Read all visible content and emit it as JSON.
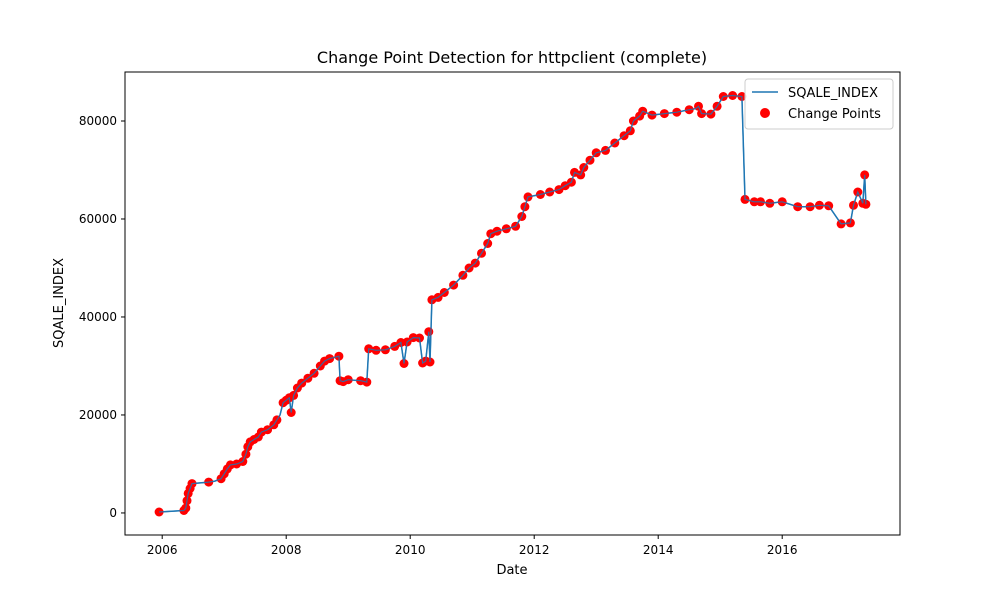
{
  "chart_data": {
    "type": "line",
    "title": "Change Point Detection for httpclient (complete)",
    "xlabel": "Date",
    "ylabel": "SQALE_INDEX",
    "xlim": [
      2005.4,
      2017.9
    ],
    "ylim": [
      -4500,
      90000
    ],
    "xticks": [
      2006,
      2008,
      2010,
      2012,
      2014,
      2016
    ],
    "yticks": [
      0,
      20000,
      40000,
      60000,
      80000
    ],
    "grid": false,
    "legend": "top-right",
    "series": [
      {
        "name": "SQALE_INDEX",
        "kind": "line",
        "color": "#1f77b4",
        "points": [
          [
            2005.95,
            200
          ],
          [
            2006.35,
            500
          ],
          [
            2006.38,
            1000
          ],
          [
            2006.4,
            2500
          ],
          [
            2006.42,
            4000
          ],
          [
            2006.45,
            5000
          ],
          [
            2006.48,
            6000
          ],
          [
            2006.75,
            6300
          ],
          [
            2006.85,
            6500
          ],
          [
            2006.95,
            7000
          ],
          [
            2007.0,
            8000
          ],
          [
            2007.05,
            9000
          ],
          [
            2007.1,
            9800
          ],
          [
            2007.2,
            10000
          ],
          [
            2007.3,
            10500
          ],
          [
            2007.35,
            12000
          ],
          [
            2007.38,
            13500
          ],
          [
            2007.42,
            14500
          ],
          [
            2007.48,
            15000
          ],
          [
            2007.55,
            15500
          ],
          [
            2007.6,
            16500
          ],
          [
            2007.7,
            17000
          ],
          [
            2007.8,
            18000
          ],
          [
            2007.85,
            19000
          ],
          [
            2007.9,
            20000
          ],
          [
            2007.95,
            22500
          ],
          [
            2008.0,
            23000
          ],
          [
            2008.05,
            23500
          ],
          [
            2008.08,
            20500
          ],
          [
            2008.12,
            24000
          ],
          [
            2008.18,
            25500
          ],
          [
            2008.25,
            26500
          ],
          [
            2008.35,
            27500
          ],
          [
            2008.45,
            28500
          ],
          [
            2008.55,
            30000
          ],
          [
            2008.62,
            31000
          ],
          [
            2008.7,
            31500
          ],
          [
            2008.8,
            31800
          ],
          [
            2008.85,
            32000
          ],
          [
            2008.87,
            27000
          ],
          [
            2008.92,
            26800
          ],
          [
            2009.0,
            27200
          ],
          [
            2009.2,
            27000
          ],
          [
            2009.3,
            26700
          ],
          [
            2009.33,
            33500
          ],
          [
            2009.45,
            33200
          ],
          [
            2009.6,
            33300
          ],
          [
            2009.75,
            34000
          ],
          [
            2009.85,
            34800
          ],
          [
            2009.9,
            30500
          ],
          [
            2009.95,
            34900
          ],
          [
            2010.05,
            35800
          ],
          [
            2010.15,
            35700
          ],
          [
            2010.2,
            30600
          ],
          [
            2010.25,
            31000
          ],
          [
            2010.3,
            37000
          ],
          [
            2010.32,
            30800
          ],
          [
            2010.35,
            43500
          ],
          [
            2010.45,
            44000
          ],
          [
            2010.55,
            45000
          ],
          [
            2010.7,
            46500
          ],
          [
            2010.85,
            48500
          ],
          [
            2010.95,
            50000
          ],
          [
            2011.05,
            51000
          ],
          [
            2011.15,
            53000
          ],
          [
            2011.25,
            55000
          ],
          [
            2011.3,
            57000
          ],
          [
            2011.4,
            57500
          ],
          [
            2011.55,
            58000
          ],
          [
            2011.7,
            58500
          ],
          [
            2011.8,
            60500
          ],
          [
            2011.85,
            62500
          ],
          [
            2011.9,
            64500
          ],
          [
            2012.1,
            65000
          ],
          [
            2012.25,
            65500
          ],
          [
            2012.4,
            66000
          ],
          [
            2012.5,
            66800
          ],
          [
            2012.6,
            67500
          ],
          [
            2012.65,
            69500
          ],
          [
            2012.75,
            69000
          ],
          [
            2012.8,
            70500
          ],
          [
            2012.9,
            72000
          ],
          [
            2013.0,
            73500
          ],
          [
            2013.15,
            74000
          ],
          [
            2013.3,
            75500
          ],
          [
            2013.45,
            77000
          ],
          [
            2013.55,
            78000
          ],
          [
            2013.6,
            80000
          ],
          [
            2013.7,
            81000
          ],
          [
            2013.75,
            82000
          ],
          [
            2013.9,
            81200
          ],
          [
            2014.1,
            81500
          ],
          [
            2014.3,
            81800
          ],
          [
            2014.5,
            82300
          ],
          [
            2014.6,
            82500
          ],
          [
            2014.65,
            83000
          ],
          [
            2014.7,
            81500
          ],
          [
            2014.85,
            81400
          ],
          [
            2014.95,
            83000
          ],
          [
            2015.05,
            85000
          ],
          [
            2015.2,
            85200
          ],
          [
            2015.35,
            85000
          ],
          [
            2015.4,
            64000
          ],
          [
            2015.55,
            63500
          ],
          [
            2015.65,
            63500
          ],
          [
            2015.8,
            63200
          ],
          [
            2016.0,
            63500
          ],
          [
            2016.25,
            62500
          ],
          [
            2016.45,
            62500
          ],
          [
            2016.6,
            62800
          ],
          [
            2016.75,
            62700
          ],
          [
            2016.95,
            59000
          ],
          [
            2017.1,
            59200
          ],
          [
            2017.15,
            62800
          ],
          [
            2017.22,
            65500
          ],
          [
            2017.3,
            63200
          ],
          [
            2017.33,
            69000
          ],
          [
            2017.35,
            63000
          ]
        ]
      },
      {
        "name": "Change Points",
        "kind": "scatter",
        "color": "#ff0000",
        "points": [
          [
            2005.95,
            200
          ],
          [
            2006.35,
            500
          ],
          [
            2006.38,
            1000
          ],
          [
            2006.4,
            2500
          ],
          [
            2006.42,
            4000
          ],
          [
            2006.45,
            5000
          ],
          [
            2006.48,
            6000
          ],
          [
            2006.75,
            6300
          ],
          [
            2006.95,
            7000
          ],
          [
            2007.0,
            8000
          ],
          [
            2007.05,
            9000
          ],
          [
            2007.1,
            9800
          ],
          [
            2007.2,
            10000
          ],
          [
            2007.3,
            10500
          ],
          [
            2007.35,
            12000
          ],
          [
            2007.38,
            13500
          ],
          [
            2007.42,
            14500
          ],
          [
            2007.48,
            15000
          ],
          [
            2007.55,
            15500
          ],
          [
            2007.6,
            16500
          ],
          [
            2007.7,
            17000
          ],
          [
            2007.8,
            18000
          ],
          [
            2007.85,
            19000
          ],
          [
            2007.95,
            22500
          ],
          [
            2008.0,
            23000
          ],
          [
            2008.05,
            23500
          ],
          [
            2008.08,
            20500
          ],
          [
            2008.12,
            24000
          ],
          [
            2008.18,
            25500
          ],
          [
            2008.25,
            26500
          ],
          [
            2008.35,
            27500
          ],
          [
            2008.45,
            28500
          ],
          [
            2008.55,
            30000
          ],
          [
            2008.62,
            31000
          ],
          [
            2008.7,
            31500
          ],
          [
            2008.85,
            32000
          ],
          [
            2008.87,
            27000
          ],
          [
            2008.92,
            26800
          ],
          [
            2009.0,
            27200
          ],
          [
            2009.2,
            27000
          ],
          [
            2009.3,
            26700
          ],
          [
            2009.33,
            33500
          ],
          [
            2009.45,
            33200
          ],
          [
            2009.6,
            33300
          ],
          [
            2009.75,
            34000
          ],
          [
            2009.85,
            34800
          ],
          [
            2009.9,
            30500
          ],
          [
            2009.95,
            34900
          ],
          [
            2010.05,
            35800
          ],
          [
            2010.15,
            35700
          ],
          [
            2010.2,
            30600
          ],
          [
            2010.25,
            31000
          ],
          [
            2010.3,
            37000
          ],
          [
            2010.32,
            30800
          ],
          [
            2010.35,
            43500
          ],
          [
            2010.45,
            44000
          ],
          [
            2010.55,
            45000
          ],
          [
            2010.7,
            46500
          ],
          [
            2010.85,
            48500
          ],
          [
            2010.95,
            50000
          ],
          [
            2011.05,
            51000
          ],
          [
            2011.15,
            53000
          ],
          [
            2011.25,
            55000
          ],
          [
            2011.3,
            57000
          ],
          [
            2011.4,
            57500
          ],
          [
            2011.55,
            58000
          ],
          [
            2011.7,
            58500
          ],
          [
            2011.8,
            60500
          ],
          [
            2011.85,
            62500
          ],
          [
            2011.9,
            64500
          ],
          [
            2012.1,
            65000
          ],
          [
            2012.25,
            65500
          ],
          [
            2012.4,
            66000
          ],
          [
            2012.5,
            66800
          ],
          [
            2012.6,
            67500
          ],
          [
            2012.65,
            69500
          ],
          [
            2012.75,
            69000
          ],
          [
            2012.8,
            70500
          ],
          [
            2012.9,
            72000
          ],
          [
            2013.0,
            73500
          ],
          [
            2013.15,
            74000
          ],
          [
            2013.3,
            75500
          ],
          [
            2013.45,
            77000
          ],
          [
            2013.55,
            78000
          ],
          [
            2013.6,
            80000
          ],
          [
            2013.7,
            81000
          ],
          [
            2013.75,
            82000
          ],
          [
            2013.9,
            81200
          ],
          [
            2014.1,
            81500
          ],
          [
            2014.3,
            81800
          ],
          [
            2014.5,
            82300
          ],
          [
            2014.65,
            83000
          ],
          [
            2014.7,
            81500
          ],
          [
            2014.85,
            81400
          ],
          [
            2014.95,
            83000
          ],
          [
            2015.05,
            85000
          ],
          [
            2015.2,
            85200
          ],
          [
            2015.35,
            85000
          ],
          [
            2015.4,
            64000
          ],
          [
            2015.55,
            63500
          ],
          [
            2015.65,
            63500
          ],
          [
            2015.8,
            63200
          ],
          [
            2016.0,
            63500
          ],
          [
            2016.25,
            62500
          ],
          [
            2016.45,
            62500
          ],
          [
            2016.6,
            62800
          ],
          [
            2016.75,
            62700
          ],
          [
            2016.95,
            59000
          ],
          [
            2017.1,
            59200
          ],
          [
            2017.15,
            62800
          ],
          [
            2017.22,
            65500
          ],
          [
            2017.3,
            63200
          ],
          [
            2017.33,
            69000
          ],
          [
            2017.35,
            63000
          ]
        ]
      }
    ]
  }
}
